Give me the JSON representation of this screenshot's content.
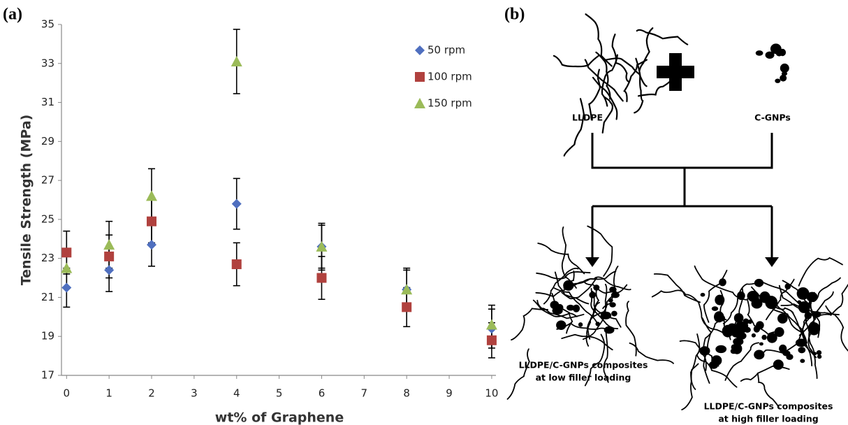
{
  "chart_data": {
    "type": "scatter",
    "panel_label": "(a)",
    "x_label": "wt% of Graphene",
    "y_label": "Tensile Strength (MPa)",
    "x": [
      0,
      1,
      2,
      4,
      6,
      8,
      10
    ],
    "series": [
      {
        "name": "50 rpm",
        "color": "#4f6fbf",
        "marker": "diamond",
        "values": [
          21.5,
          22.4,
          23.7,
          25.8,
          23.6,
          21.4,
          19.4
        ],
        "errors": [
          1.0,
          1.1,
          1.1,
          1.3,
          1.1,
          1.0,
          1.0
        ]
      },
      {
        "name": "100 rpm",
        "color": "#b0413e",
        "marker": "square",
        "values": [
          23.3,
          23.1,
          24.9,
          22.7,
          22.0,
          20.5,
          18.8
        ],
        "errors": [
          1.1,
          1.1,
          1.1,
          1.1,
          1.1,
          1.0,
          0.9
        ]
      },
      {
        "name": "150 rpm",
        "color": "#9bbb59",
        "marker": "triangle",
        "values": [
          22.5,
          23.7,
          26.2,
          33.1,
          23.6,
          21.4,
          19.6
        ],
        "errors": [
          1.0,
          1.2,
          1.4,
          1.65,
          1.2,
          1.1,
          1.0
        ]
      }
    ],
    "xlim": [
      -0.12,
      10.1
    ],
    "xticks": [
      0,
      1,
      2,
      3,
      4,
      5,
      6,
      7,
      8,
      9,
      10
    ],
    "ylim": [
      17,
      35
    ],
    "yticks": [
      17,
      19,
      21,
      23,
      25,
      27,
      29,
      31,
      33,
      35
    ],
    "grid": false,
    "legend": "top-right"
  },
  "diagram": {
    "panel_label": "(b)",
    "inputs": [
      "LLDPE",
      "C-GNPs"
    ],
    "low_loading": [
      "LLDPE/C-GNPs  composites",
      "at low filler loading"
    ],
    "high_loading": [
      "LLDPE/C-GNPs  composites",
      "at high filler loading"
    ]
  }
}
